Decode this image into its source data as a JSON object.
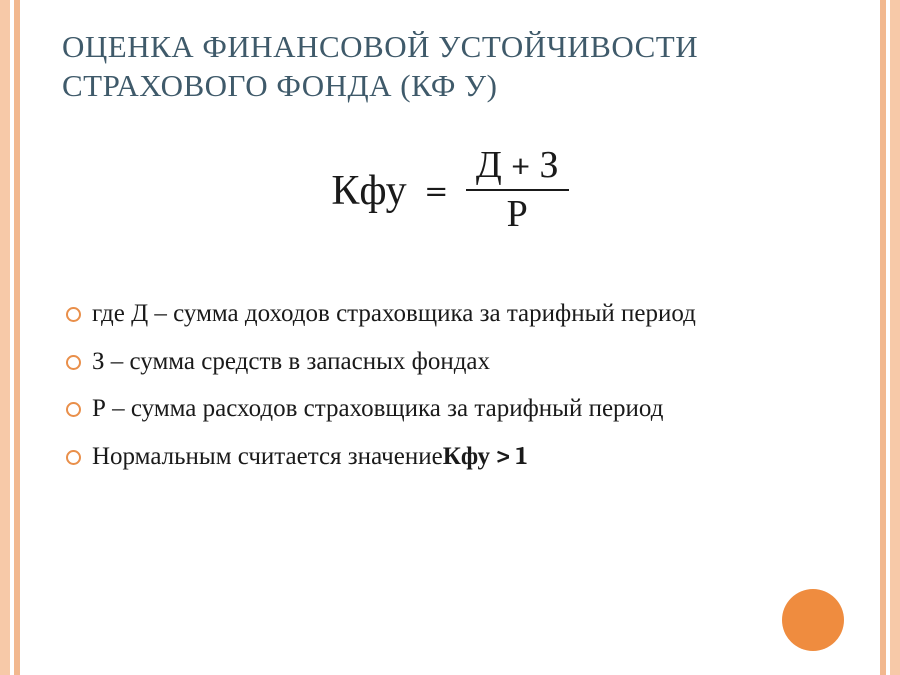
{
  "colors": {
    "outer_band": "#f7c9a8",
    "inner_band": "#f2b88f",
    "title": "#3f5a6a",
    "text": "#1a1a1a",
    "bullet_ring": "#e98f4a",
    "circle_decor": "#ef8c3f",
    "background": "#ffffff"
  },
  "title": "ОЦЕНКА ФИНАНСОВОЙ УСТОЙЧИВОСТИ СТРАХОВОГО ФОНДА (КФ У)",
  "formula": {
    "lhs": "Кфу",
    "eq": "=",
    "numerator": "Д + З",
    "denominator": "Р"
  },
  "definitions": [
    "где Д – сумма доходов страховщика за тарифный период",
    "З – сумма средств в запасных фондах",
    "Р – сумма расходов страховщика за тарифный период"
  ],
  "condition": {
    "prefix": "Нормальным считается значение",
    "expr": "Кфу > 1"
  }
}
